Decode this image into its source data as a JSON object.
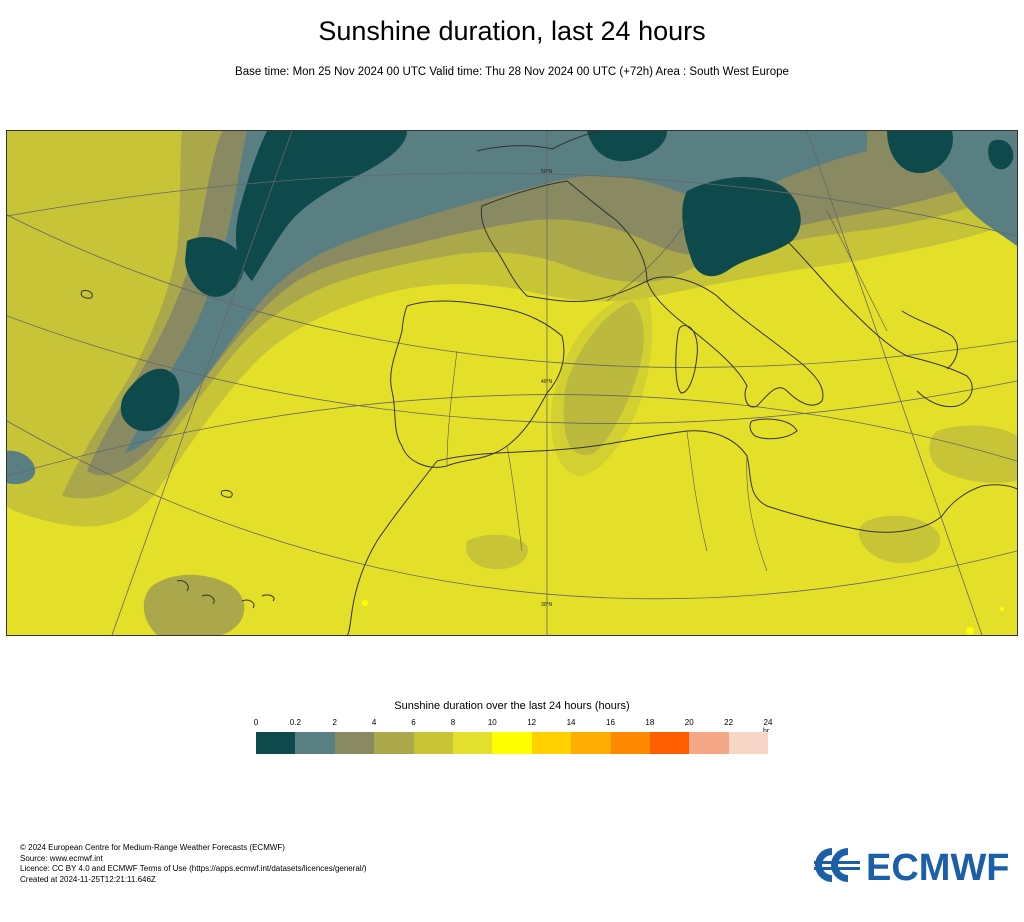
{
  "header": {
    "title": "Sunshine duration, last 24 hours",
    "subtitle": "Base time: Mon 25 Nov 2024 00 UTC Valid time: Thu 28 Nov 2024 00 UTC (+72h) Area : South West Europe"
  },
  "map": {
    "region": "South West Europe",
    "grid_labels": [
      "50°N",
      "40°N",
      "30°N"
    ]
  },
  "legend": {
    "title": "Sunshine duration over the last 24 hours (hours)",
    "unit": "hr",
    "ticks": [
      "0",
      "0.2",
      "2",
      "4",
      "6",
      "8",
      "10",
      "12",
      "14",
      "16",
      "18",
      "20",
      "22",
      "24"
    ],
    "colors": [
      "#0e4a4c",
      "#5a7f83",
      "#8a8a62",
      "#aaa84a",
      "#c8c438",
      "#e2e02c",
      "#ffff00",
      "#ffd100",
      "#ffae00",
      "#ff8a00",
      "#ff5e00",
      "#f5a886",
      "#f7d6c8"
    ]
  },
  "footer": {
    "lines": [
      "© 2024 European Centre for Medium-Range Weather Forecasts (ECMWF)",
      "Source: www.ecmwf.int",
      "Licence: CC BY 4.0 and ECMWF Terms of Use (https://apps.ecmwf.int/datasets/licences/general/)",
      "Created at 2024-11-25T12:21:11.646Z"
    ],
    "logo_text": "ECMWF"
  }
}
